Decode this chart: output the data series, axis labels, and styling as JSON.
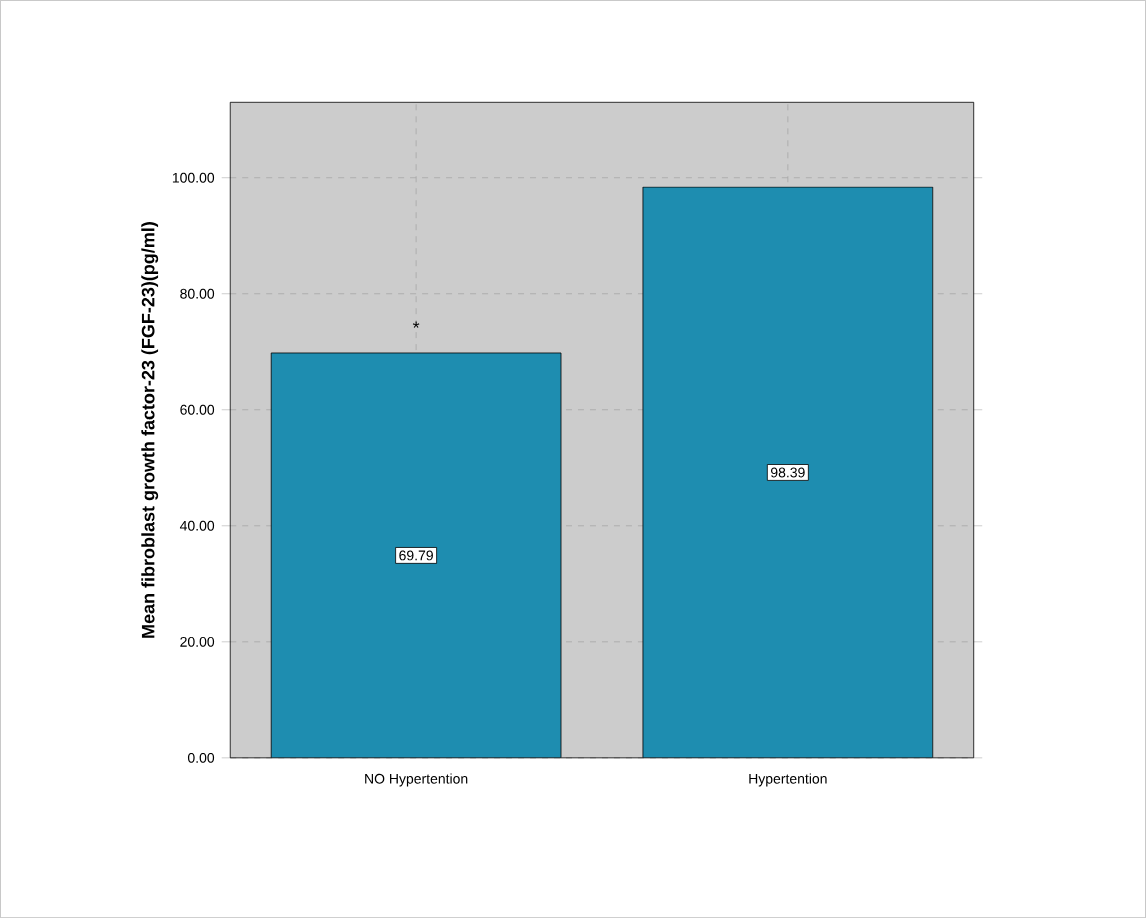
{
  "chart_data": {
    "type": "bar",
    "ylabel": "Mean fibroblast growth factor-23 (FGF-23)(pg/ml)",
    "categories": [
      "NO Hypertention",
      "Hypertention"
    ],
    "values": [
      69.79,
      98.39
    ],
    "color": "#1e8db0",
    "ylim": [
      0,
      113
    ],
    "yticks": [
      {
        "value": 0,
        "label": "0.00"
      },
      {
        "value": 20,
        "label": "20.00"
      },
      {
        "value": 40,
        "label": "40.00"
      },
      {
        "value": 60,
        "label": "60.00"
      },
      {
        "value": 80,
        "label": "80.00"
      },
      {
        "value": 100,
        "label": "100.00"
      }
    ],
    "grid": true,
    "data_labels": true,
    "annotations": [
      "*"
    ]
  }
}
